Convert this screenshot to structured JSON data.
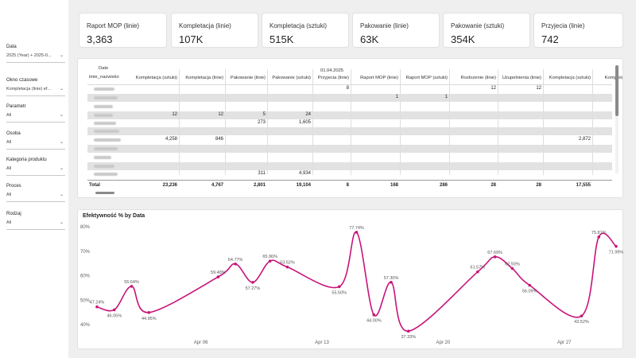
{
  "filters": [
    {
      "label": "Data",
      "value": "2025 (Year) + 2025-0..."
    },
    {
      "label": "Okno czasowe",
      "value": "Kompletacja (linie) ef..."
    },
    {
      "label": "Parametr",
      "value": "All"
    },
    {
      "label": "Osoba",
      "value": "All"
    },
    {
      "label": "Kategoria produktu",
      "value": "All"
    },
    {
      "label": "Proces",
      "value": "All"
    },
    {
      "label": "Rodzaj",
      "value": "All"
    }
  ],
  "kpis": [
    {
      "title": "Raport MOP (linie)",
      "value": "3,363"
    },
    {
      "title": "Kompletacja (linie)",
      "value": "107K"
    },
    {
      "title": "Kompletacja (sztuki)",
      "value": "515K"
    },
    {
      "title": "Pakowanie (linie)",
      "value": "63K"
    },
    {
      "title": "Pakowanie (sztuki)",
      "value": "354K"
    },
    {
      "title": "Przyjecia (linie)",
      "value": "742"
    }
  ],
  "matrix": {
    "date_header": "Date",
    "date_group": "01.04.2025",
    "row_header": "imie_nazwisko",
    "columns": [
      "Kompletacja (sztuki)",
      "Kompletacja (linie)",
      "Pakowanie (linie)",
      "Pakowanie (sztuki)",
      "Przyjecia (linie)",
      "Raport MOP (linie)",
      "Raport MOP (sztuki)",
      "Rozlozenie (linie)",
      "Uzupelnienia (linie)",
      "Kompletacja (sztuki)",
      "Kompletac"
    ],
    "rows": [
      [
        "",
        "",
        "",
        "",
        "8",
        "",
        "",
        "12",
        "12",
        "",
        ""
      ],
      [
        "",
        "",
        "",
        "",
        "",
        "1",
        "1",
        "",
        "",
        "",
        ""
      ],
      [
        "",
        "",
        "",
        "",
        "",
        "",
        "",
        "",
        "",
        "",
        ""
      ],
      [
        "12",
        "12",
        "5",
        "24",
        "",
        "",
        "",
        "",
        "",
        "",
        ""
      ],
      [
        "",
        "",
        "273",
        "1,605",
        "",
        "",
        "",
        "",
        "",
        "",
        ""
      ],
      [
        "",
        "",
        "",
        "",
        "",
        "",
        "",
        "",
        "",
        "",
        ""
      ],
      [
        "4,258",
        "846",
        "",
        "",
        "",
        "",
        "",
        "",
        "",
        "2,872",
        ""
      ],
      [
        "",
        "",
        "",
        "",
        "",
        "",
        "",
        "",
        "",
        "",
        ""
      ],
      [
        "",
        "",
        "",
        "",
        "",
        "",
        "",
        "",
        "",
        "",
        ""
      ],
      [
        "",
        "",
        "",
        "",
        "",
        "",
        "",
        "",
        "",
        "",
        ""
      ],
      [
        "",
        "",
        "311",
        "4,934",
        "",
        "",
        "",
        "",
        "",
        "",
        ""
      ]
    ],
    "total_label": "Total",
    "totals": [
      "23,236",
      "4,767",
      "2,801",
      "19,104",
      "8",
      "168",
      "286",
      "28",
      "28",
      "17,555",
      ""
    ]
  },
  "chart_title": "Efektywność % by Data",
  "chart_data": {
    "type": "line",
    "title": "Efektywność % by Data",
    "xlabel": "",
    "ylabel": "",
    "x_ticks": [
      "Apr 06",
      "Apr 13",
      "Apr 20",
      "Apr 27"
    ],
    "y_ticks": [
      "40%",
      "50%",
      "60%",
      "70%",
      "80%"
    ],
    "ylim": [
      40,
      80
    ],
    "grid": false,
    "series_color": "#c8137a",
    "points": [
      {
        "x": "2025-03-31",
        "y": 47.24,
        "label": "47.24%"
      },
      {
        "x": "2025-04-01",
        "y": 46.05,
        "label": "46.05%"
      },
      {
        "x": "2025-04-02",
        "y": 55.64,
        "label": "55.64%"
      },
      {
        "x": "2025-04-03",
        "y": 44.95,
        "label": "44.95%"
      },
      {
        "x": "2025-04-07",
        "y": 59.48,
        "label": "59.48%"
      },
      {
        "x": "2025-04-08",
        "y": 64.77,
        "label": "64.77%"
      },
      {
        "x": "2025-04-09",
        "y": 57.27,
        "label": "57.27%"
      },
      {
        "x": "2025-04-10",
        "y": 65.96,
        "label": "65.96%"
      },
      {
        "x": "2025-04-11",
        "y": 63.52,
        "label": "63.52%"
      },
      {
        "x": "2025-04-14",
        "y": 55.5,
        "label": "55.50%"
      },
      {
        "x": "2025-04-15",
        "y": 77.74,
        "label": "77.74%"
      },
      {
        "x": "2025-04-16",
        "y": 44.0,
        "label": "44.00%"
      },
      {
        "x": "2025-04-17",
        "y": 57.3,
        "label": "57.30%"
      },
      {
        "x": "2025-04-18",
        "y": 37.33,
        "label": "37.33%"
      },
      {
        "x": "2025-04-22",
        "y": 61.57,
        "label": "61.57%"
      },
      {
        "x": "2025-04-23",
        "y": 67.69,
        "label": "67.69%"
      },
      {
        "x": "2025-04-24",
        "y": 62.93,
        "label": "62.93%"
      },
      {
        "x": "2025-04-25",
        "y": 56.09,
        "label": "56.09%"
      },
      {
        "x": "2025-04-28",
        "y": 43.52,
        "label": "43.52%"
      },
      {
        "x": "2025-04-29",
        "y": 75.81,
        "label": "75.81%"
      },
      {
        "x": "2025-04-30",
        "y": 71.99,
        "label": "71.99%"
      }
    ]
  }
}
